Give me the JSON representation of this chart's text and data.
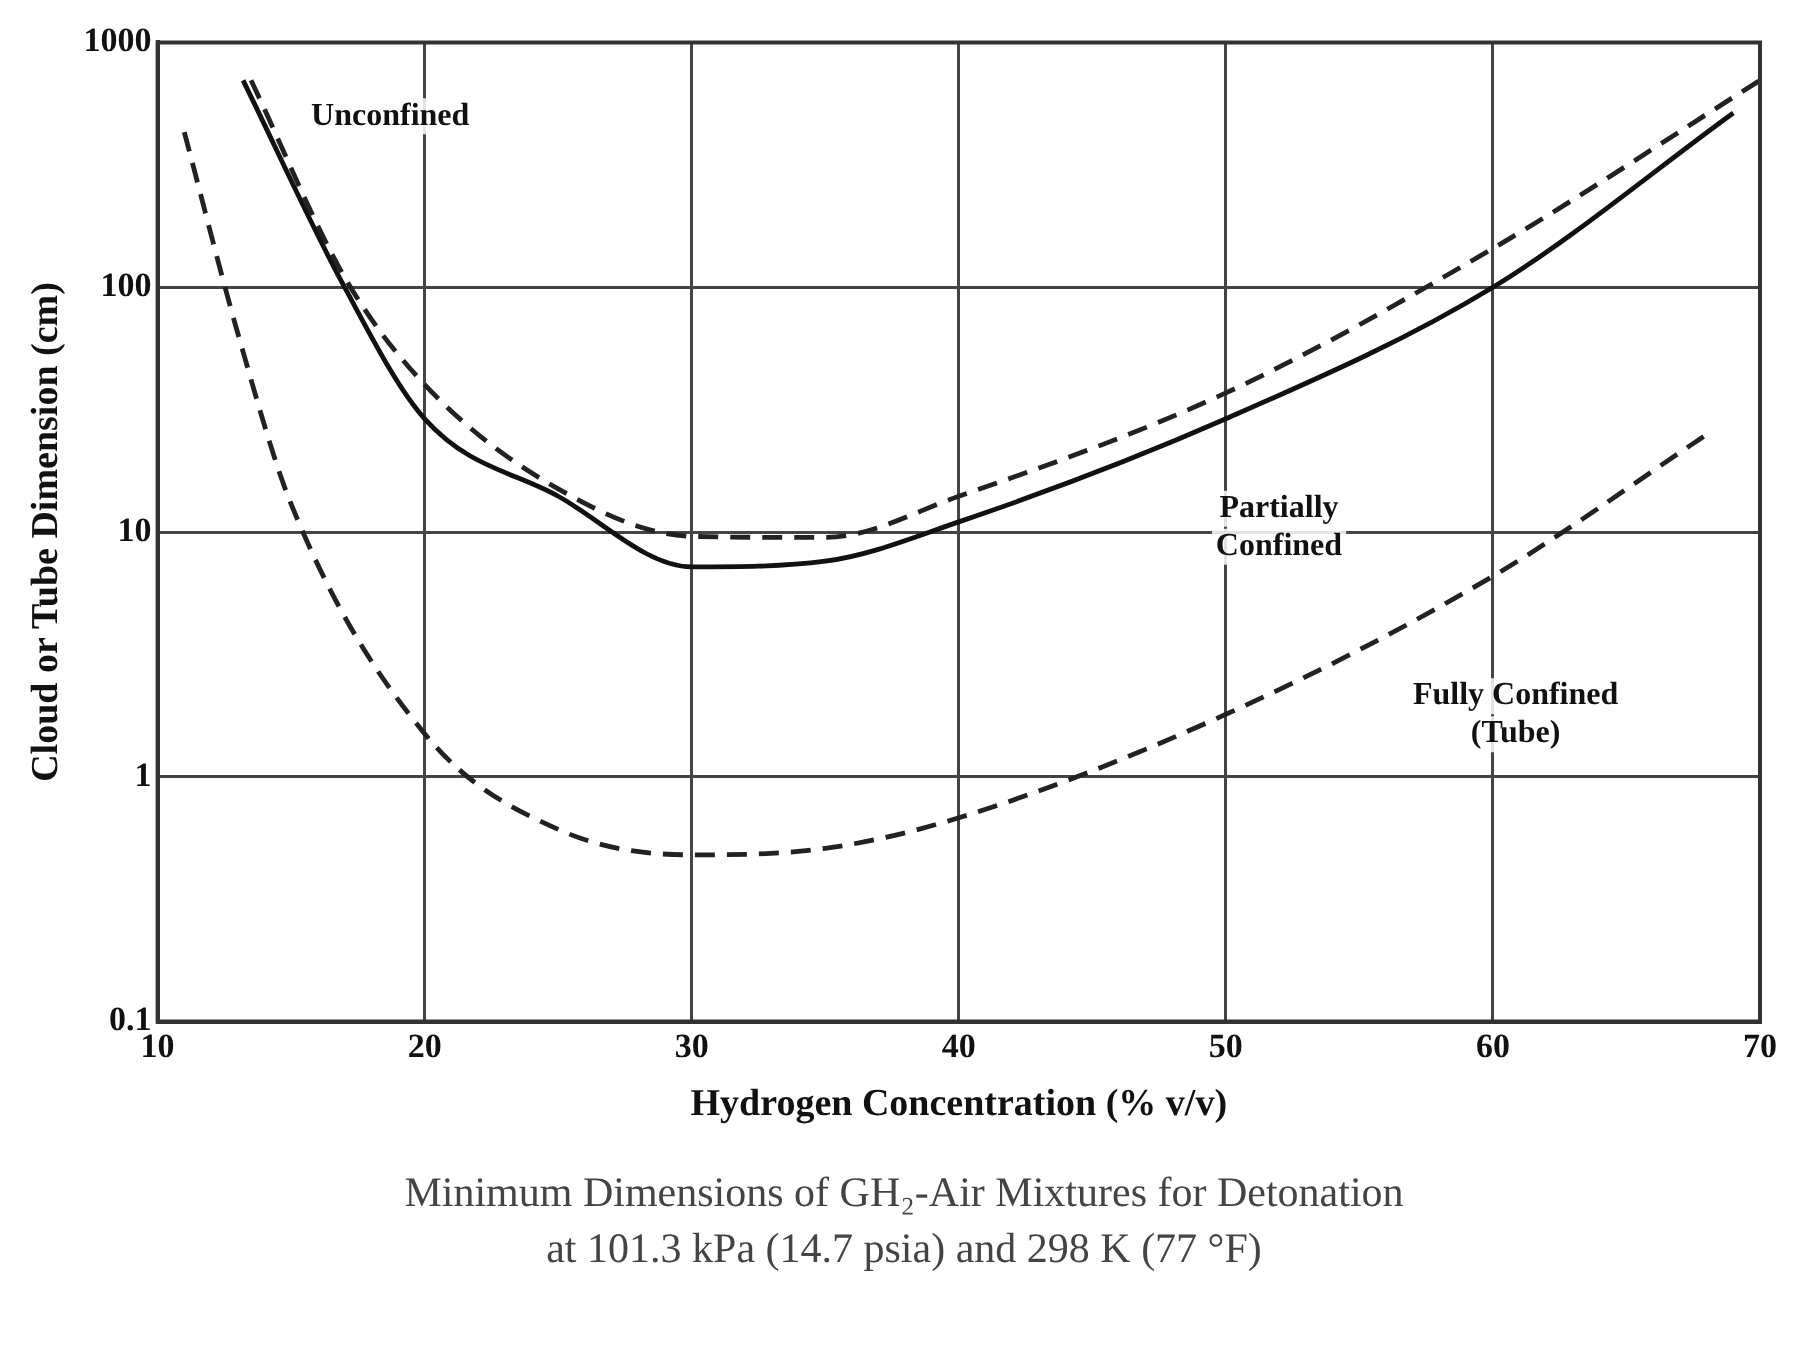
{
  "chart_data": {
    "type": "line",
    "xlabel": "Hydrogen Concentration (% v/v)",
    "ylabel": "Cloud or Tube Dimension (cm)",
    "xlim": [
      10,
      70
    ],
    "xticks": [
      10,
      20,
      30,
      40,
      50,
      60,
      70
    ],
    "ylim": [
      0.1,
      1000
    ],
    "yticks": [
      0.1,
      1,
      10,
      100,
      1000
    ],
    "log": "y",
    "grid": true,
    "legend": false,
    "marker": "none",
    "series": [
      {
        "name": "Unconfined",
        "color": "#222222",
        "line_style": "dashed",
        "x": [
          13.5,
          17,
          20,
          25,
          30,
          35,
          40,
          50,
          60,
          70
        ],
        "values": [
          700,
          110,
          40,
          15,
          9.6,
          9.5,
          14,
          37,
          144,
          700
        ]
      },
      {
        "name": "Partially Confined",
        "color": "#111111",
        "line_style": "solid",
        "x": [
          13.2,
          17,
          20,
          25,
          30,
          35,
          40,
          50,
          60,
          69
        ],
        "values": [
          700,
          100,
          29,
          14,
          7.2,
          7.6,
          11,
          29,
          100,
          515
        ]
      },
      {
        "name": "Fully Confined (Tube)",
        "color": "#222222",
        "line_style": "dashed",
        "x": [
          11,
          13,
          15,
          20,
          25,
          30,
          35,
          40,
          50,
          60,
          68
        ],
        "values": [
          430,
          65,
          13,
          1.5,
          0.61,
          0.48,
          0.51,
          0.68,
          1.8,
          6.6,
          25
        ]
      }
    ],
    "annotations": [
      "Minimum Dimensions of GH₂-Air Mixtures for Detonation\nat 101.3 kPa (14.7 psia) and 298 K (77 °F)"
    ]
  }
}
